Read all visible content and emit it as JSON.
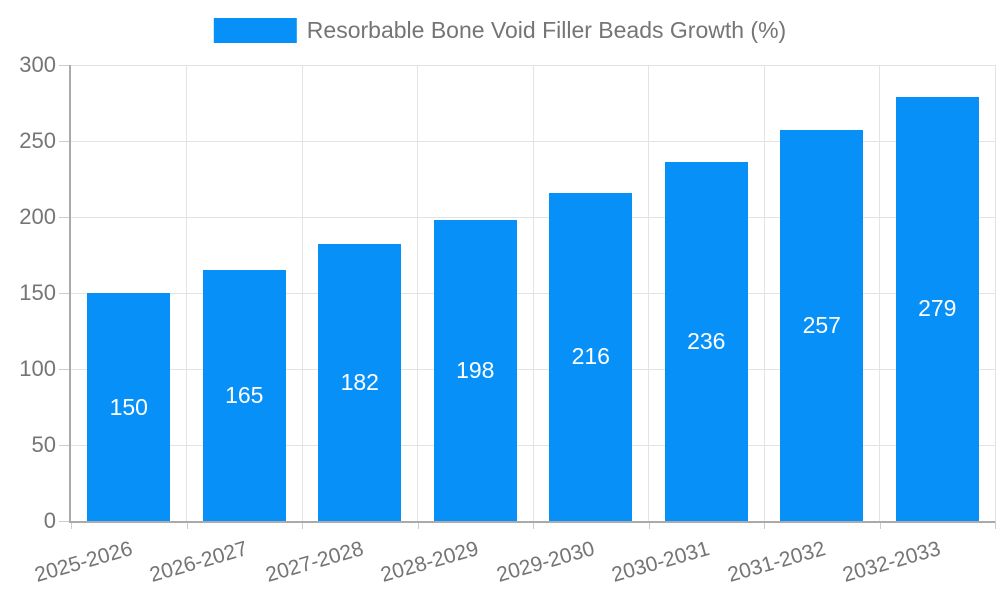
{
  "legend": {
    "label": "Resorbable Bone Void Filler Beads Growth (%)"
  },
  "chart_data": {
    "type": "bar",
    "title": "",
    "xlabel": "",
    "ylabel": "",
    "categories": [
      "2025-2026",
      "2026-2027",
      "2027-2028",
      "2028-2029",
      "2029-2030",
      "2030-2031",
      "2031-2032",
      "2032-2033"
    ],
    "series": [
      {
        "name": "Resorbable Bone Void Filler Beads Growth (%)",
        "values": [
          150,
          165,
          182,
          198,
          216,
          236,
          257,
          279
        ]
      }
    ],
    "bar_labels": [
      "150",
      "165",
      "182",
      "198",
      "216",
      "236",
      "257",
      "279"
    ],
    "ylim": [
      0,
      300
    ],
    "yticks": [
      0,
      50,
      100,
      150,
      200,
      250,
      300
    ],
    "grid": true,
    "legend_position": "top-center",
    "x_label_rotation_deg": -16,
    "colors": {
      "bar": "#0890f9",
      "bar_label": "#ffffff",
      "axis_line": "#aaaaaa",
      "tick": "#cccccc",
      "gridline": "#e3e3e3",
      "text": "#757575"
    }
  }
}
